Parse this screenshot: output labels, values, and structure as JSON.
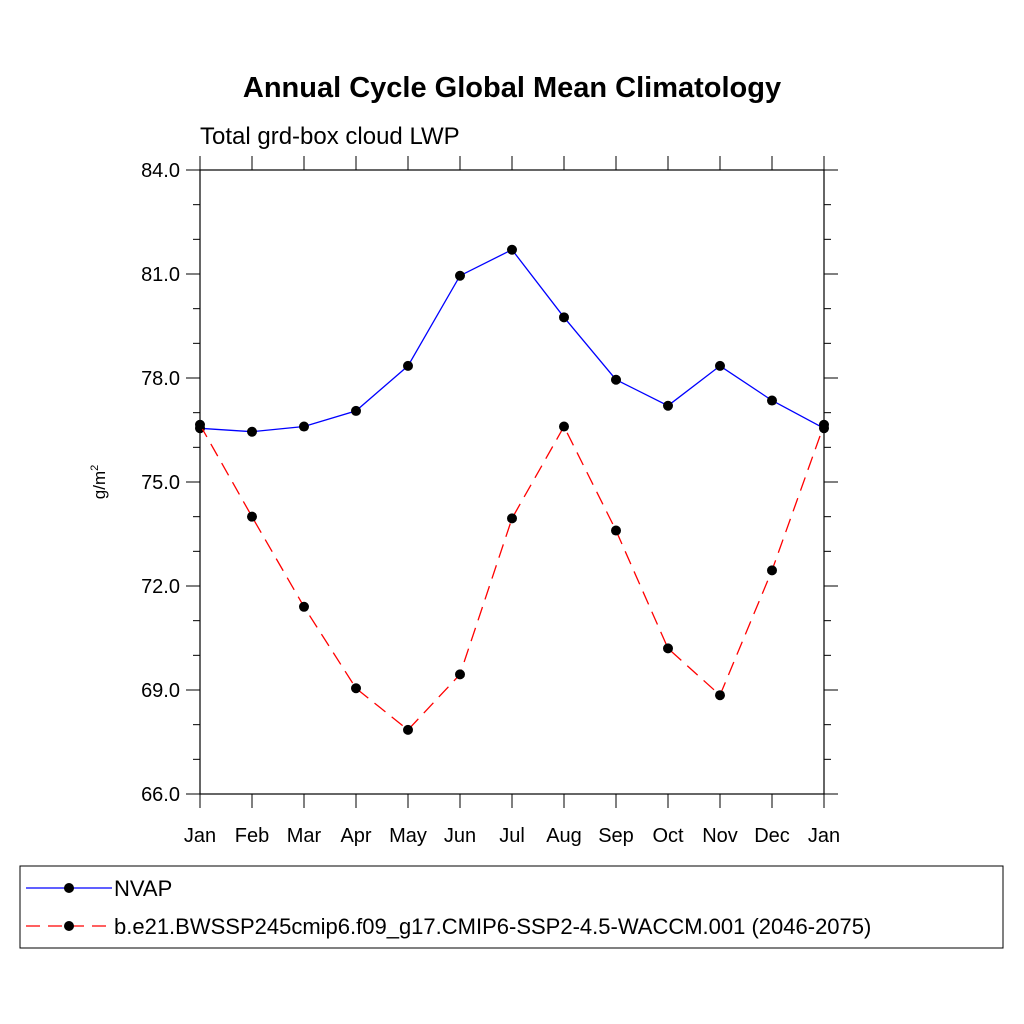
{
  "chart_data": {
    "type": "line",
    "title": "Annual Cycle Global Mean Climatology",
    "subtitle": "Total grd-box cloud LWP",
    "ylabel": "g/m",
    "ylabel_superscript": "2",
    "ylim": [
      66.0,
      84.0
    ],
    "y_ticks": [
      "84.0",
      "81.0",
      "78.0",
      "75.0",
      "72.0",
      "69.0",
      "66.0"
    ],
    "y_tick_values": [
      84,
      81,
      78,
      75,
      72,
      69,
      66
    ],
    "categories": [
      "Jan",
      "Feb",
      "Mar",
      "Apr",
      "May",
      "Jun",
      "Jul",
      "Aug",
      "Sep",
      "Oct",
      "Nov",
      "Dec",
      "Jan"
    ],
    "grid": false,
    "legend_position": "bottom",
    "series": [
      {
        "name": "NVAP",
        "color": "#0000ff",
        "line_style": "solid",
        "marker": "filled-circle",
        "values": [
          76.55,
          76.45,
          76.6,
          77.05,
          78.35,
          80.95,
          81.7,
          79.75,
          77.95,
          77.2,
          78.35,
          77.35,
          76.55
        ]
      },
      {
        "name": "b.e21.BWSSP245cmip6.f09_g17.CMIP6-SSP2-4.5-WACCM.001 (2046-2075)",
        "color": "#ff0000",
        "line_style": "dashed",
        "marker": "filled-circle",
        "values": [
          76.65,
          74.0,
          71.4,
          69.05,
          67.85,
          69.45,
          73.95,
          76.6,
          73.6,
          70.2,
          68.85,
          72.45,
          76.65
        ]
      }
    ]
  }
}
